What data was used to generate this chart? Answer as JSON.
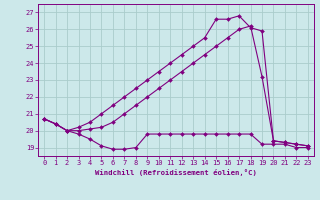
{
  "xlabel": "Windchill (Refroidissement éolien,°C)",
  "ylabel": "",
  "xlim": [
    -0.5,
    23.5
  ],
  "ylim": [
    18.5,
    27.5
  ],
  "xticks": [
    0,
    1,
    2,
    3,
    4,
    5,
    6,
    7,
    8,
    9,
    10,
    11,
    12,
    13,
    14,
    15,
    16,
    17,
    18,
    19,
    20,
    21,
    22,
    23
  ],
  "yticks": [
    19,
    20,
    21,
    22,
    23,
    24,
    25,
    26,
    27
  ],
  "bg_color": "#cce8ea",
  "line_color": "#800080",
  "grid_color": "#aacccc",
  "line1_x": [
    0,
    1,
    2,
    3,
    4,
    5,
    6,
    7,
    8,
    9,
    10,
    11,
    12,
    13,
    14,
    15,
    16,
    17,
    18,
    19,
    20,
    21,
    22,
    23
  ],
  "line1_y": [
    20.7,
    20.4,
    20.0,
    19.8,
    19.5,
    19.1,
    18.9,
    18.9,
    19.0,
    19.8,
    19.8,
    19.8,
    19.8,
    19.8,
    19.8,
    19.8,
    19.8,
    19.8,
    19.8,
    19.2,
    19.2,
    19.2,
    19.0,
    19.0
  ],
  "line2_x": [
    0,
    1,
    2,
    3,
    4,
    5,
    6,
    7,
    8,
    9,
    10,
    11,
    12,
    13,
    14,
    15,
    16,
    17,
    18,
    19,
    20,
    21,
    22,
    23
  ],
  "line2_y": [
    20.7,
    20.4,
    20.0,
    20.0,
    20.1,
    20.2,
    20.5,
    21.0,
    21.5,
    22.0,
    22.5,
    23.0,
    23.5,
    24.0,
    24.5,
    25.0,
    25.5,
    26.0,
    26.2,
    23.2,
    19.4,
    19.3,
    19.2,
    19.1
  ],
  "line3_x": [
    0,
    1,
    2,
    3,
    4,
    5,
    6,
    7,
    8,
    9,
    10,
    11,
    12,
    13,
    14,
    15,
    16,
    17,
    18,
    19,
    20,
    21,
    22,
    23
  ],
  "line3_y": [
    20.7,
    20.4,
    20.0,
    20.2,
    20.5,
    21.0,
    21.5,
    22.0,
    22.5,
    23.0,
    23.5,
    24.0,
    24.5,
    25.0,
    25.5,
    26.6,
    26.6,
    26.8,
    26.1,
    25.9,
    19.4,
    19.3,
    19.2,
    19.1
  ]
}
